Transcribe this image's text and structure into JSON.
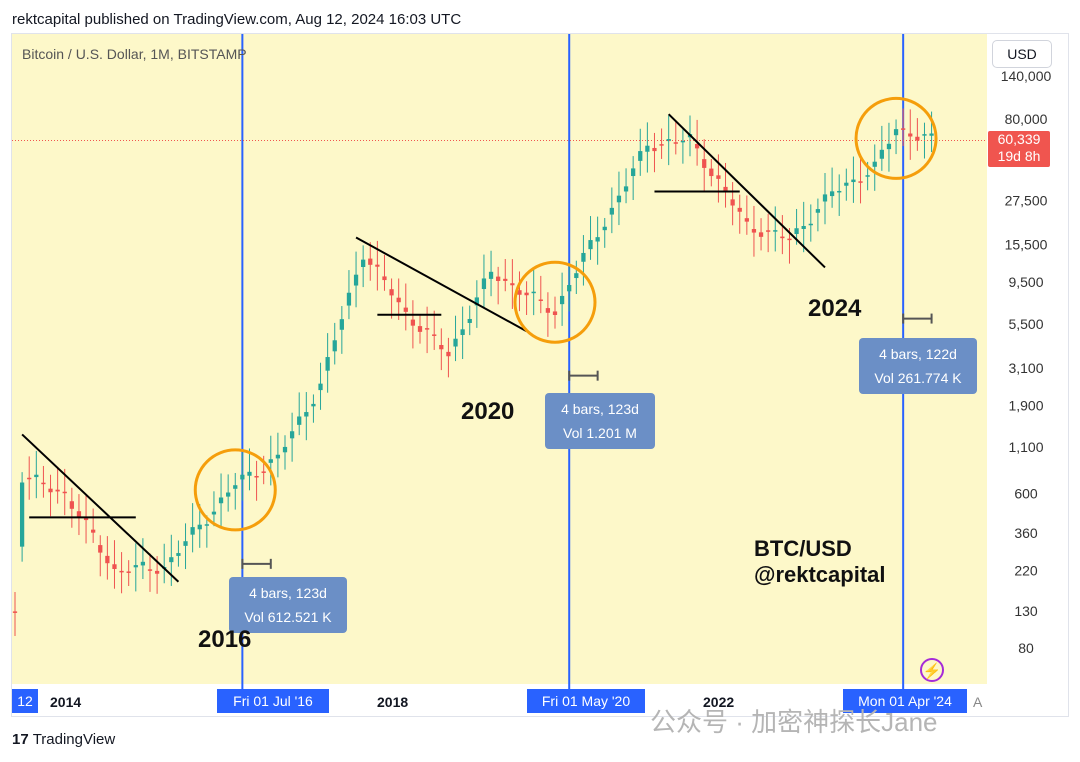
{
  "header": "rektcapital published on TradingView.com, Aug 12, 2024 16:03 UTC",
  "symbol": "Bitcoin / U.S. Dollar, 1M, BITSTAMP",
  "currency": "USD",
  "price_tag": {
    "price": "60,339",
    "countdown": "19d 8h"
  },
  "annotations": {
    "year_2016": "2016",
    "year_2020": "2020",
    "year_2024": "2024",
    "watermark_line1": "BTC/USD",
    "watermark_line2": "@rektcapital"
  },
  "measure_boxes": [
    {
      "bars": "4 bars, 123d",
      "vol": "Vol 612.521 K"
    },
    {
      "bars": "4 bars, 123d",
      "vol": "Vol 1.201 M"
    },
    {
      "bars": "4 bars, 122d",
      "vol": "Vol 261.774 K"
    }
  ],
  "time_tags": {
    "left_edge": "12",
    "halving_2016": "Fri 01 Jul '16",
    "halving_2020": "Fri 01 May '20",
    "halving_2024": "Mon 01 Apr '24",
    "right_edge": "A"
  },
  "x_labels": [
    "2014",
    "2018",
    "2022"
  ],
  "footer": {
    "mark": "17",
    "name": "TradingView"
  },
  "wechat_watermark": "公众号 · 加密神探长Jane",
  "colors": {
    "background": "#fdf8c9",
    "up": "#26a69a",
    "down": "#ef5350",
    "halving_line": "#2962ff",
    "circle": "#f59e0b",
    "trendline": "#000000",
    "price_line": "#f0554f"
  },
  "chart_data": {
    "type": "candlestick",
    "title": "Bitcoin / U.S. Dollar, 1M, BITSTAMP",
    "y_scale": "log",
    "y_ticks": [
      140000,
      80000,
      27500,
      15500,
      9500,
      5500,
      3100,
      1900,
      1100,
      600,
      360,
      220,
      130,
      80
    ],
    "y_tick_labels": [
      "140,000",
      "80,000",
      "27,500",
      "15,500",
      "9,500",
      "5,500",
      "3,100",
      "1,900",
      "1,100",
      "600",
      "360",
      "220",
      "130",
      "80"
    ],
    "y_range": [
      50,
      180000
    ],
    "x_range": [
      "2013-11",
      "2024-12"
    ],
    "current_price": 60339,
    "halvings": [
      "2016-07",
      "2020-05",
      "2024-04"
    ],
    "key_points": [
      {
        "date": "2013-11",
        "price": 130
      },
      {
        "date": "2013-12",
        "price": 750
      },
      {
        "date": "2014-06",
        "price": 600
      },
      {
        "date": "2015-01",
        "price": 220
      },
      {
        "date": "2015-08",
        "price": 230
      },
      {
        "date": "2016-06",
        "price": 680
      },
      {
        "date": "2016-12",
        "price": 960
      },
      {
        "date": "2017-06",
        "price": 2500
      },
      {
        "date": "2017-12",
        "price": 14000
      },
      {
        "date": "2018-06",
        "price": 6300
      },
      {
        "date": "2018-12",
        "price": 3700
      },
      {
        "date": "2019-06",
        "price": 10800
      },
      {
        "date": "2020-03",
        "price": 6400
      },
      {
        "date": "2020-05",
        "price": 9400
      },
      {
        "date": "2020-12",
        "price": 29000
      },
      {
        "date": "2021-04",
        "price": 57000
      },
      {
        "date": "2021-10",
        "price": 61000
      },
      {
        "date": "2022-06",
        "price": 19900
      },
      {
        "date": "2022-12",
        "price": 16500
      },
      {
        "date": "2023-06",
        "price": 30400
      },
      {
        "date": "2023-12",
        "price": 42300
      },
      {
        "date": "2024-03",
        "price": 71000
      },
      {
        "date": "2024-08",
        "price": 60339
      }
    ]
  }
}
